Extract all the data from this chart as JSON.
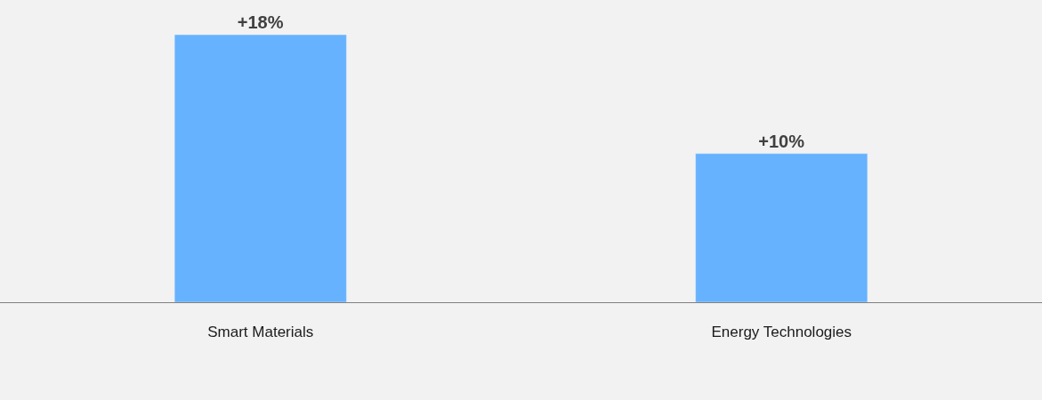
{
  "chart_data": {
    "type": "bar",
    "categories": [
      "Smart Materials",
      "Energy Technologies"
    ],
    "values": [
      18,
      10
    ],
    "value_labels": [
      "+18%",
      "+10%"
    ],
    "color": "#66b2ff",
    "tick_labels": "x",
    "grid": false,
    "legend": false
  }
}
